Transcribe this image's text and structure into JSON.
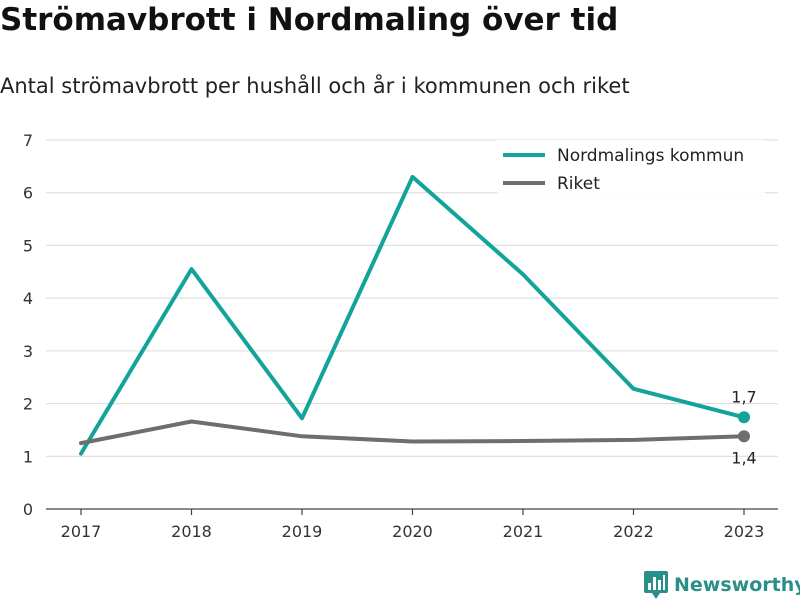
{
  "header": {
    "title": "Strömavbrott i Nordmaling över tid",
    "subtitle": "Antal strömavbrott per hushåll och år i kommunen och riket"
  },
  "branding": {
    "logo_text": "Newsworthy",
    "logo_icon": "newsworthy-bar-chart-icon",
    "color": "#2a8f86"
  },
  "chart_data": {
    "type": "line",
    "title": "Strömavbrott i Nordmaling över tid",
    "subtitle": "Antal strömavbrott per hushåll och år i kommunen och riket",
    "x": [
      "2017",
      "2018",
      "2019",
      "2020",
      "2021",
      "2022",
      "2023"
    ],
    "ylim": [
      0,
      7
    ],
    "yticks": [
      0,
      1,
      2,
      3,
      4,
      5,
      6,
      7
    ],
    "grid": true,
    "legend_position": "top-right",
    "series": [
      {
        "name": "Nordmalings kommun",
        "color": "#12a39b",
        "values": [
          1.05,
          4.55,
          1.72,
          6.3,
          4.45,
          2.28,
          1.74
        ]
      },
      {
        "name": "Riket",
        "color": "#6e6e6e",
        "values": [
          1.25,
          1.66,
          1.38,
          1.28,
          1.29,
          1.31,
          1.38
        ]
      }
    ],
    "annotations": [
      {
        "series": "Nordmalings kommun",
        "x": "2023",
        "label": "1,7",
        "placement": "above"
      },
      {
        "series": "Riket",
        "x": "2023",
        "label": "1,4",
        "placement": "below"
      }
    ]
  }
}
